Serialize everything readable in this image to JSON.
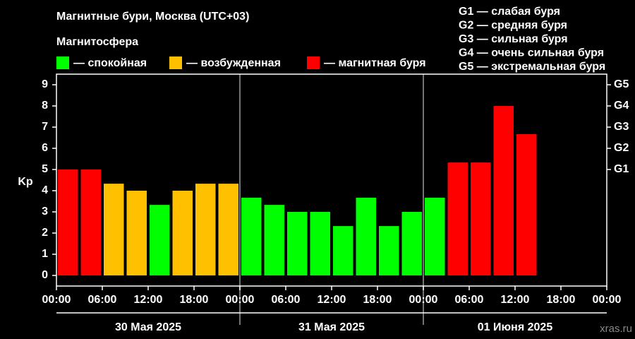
{
  "chart_data": {
    "type": "bar",
    "title": "Магнитные бури, Москва (UTC+03)",
    "legend_title": "Магнитосфера",
    "legend": [
      {
        "label": "— спокойная",
        "color": "#00ff00"
      },
      {
        "label": "— возбужденная",
        "color": "#ffc000"
      },
      {
        "label": "— магнитная буря",
        "color": "#ff0000"
      }
    ],
    "scale_legend": [
      "G1 — слабая буря",
      "G2 — средняя буря",
      "G3 — сильная буря",
      "G4 — очень сильная буря",
      "G5 — экстремальная буря"
    ],
    "y_label": "Kp",
    "x": [
      0,
      3,
      6,
      9,
      12,
      15,
      18,
      21,
      24,
      27,
      30,
      33,
      36,
      39,
      42,
      45,
      48,
      51,
      54,
      57,
      60
    ],
    "bar_width": 3,
    "values": [
      5,
      5,
      4.33,
      4,
      3.33,
      4,
      4.33,
      4.33,
      3.67,
      3.33,
      3,
      3,
      2.33,
      3.67,
      2.33,
      3,
      3.67,
      5.33,
      5.33,
      8,
      6.67
    ],
    "colors": [
      "#ff0000",
      "#ff0000",
      "#ffc000",
      "#ffc000",
      "#00ff00",
      "#ffc000",
      "#ffc000",
      "#ffc000",
      "#00ff00",
      "#00ff00",
      "#00ff00",
      "#00ff00",
      "#00ff00",
      "#00ff00",
      "#00ff00",
      "#00ff00",
      "#00ff00",
      "#ff0000",
      "#ff0000",
      "#ff0000",
      "#ff0000"
    ],
    "xlim": [
      0,
      72
    ],
    "xticks": [
      {
        "value": 0,
        "label": "00:00"
      },
      {
        "value": 6,
        "label": "06:00"
      },
      {
        "value": 12,
        "label": "12:00"
      },
      {
        "value": 18,
        "label": "18:00"
      },
      {
        "value": 24,
        "label": "00:00"
      },
      {
        "value": 30,
        "label": "06:00"
      },
      {
        "value": 36,
        "label": "12:00"
      },
      {
        "value": 42,
        "label": "18:00"
      },
      {
        "value": 48,
        "label": "00:00"
      },
      {
        "value": 54,
        "label": "06:00"
      },
      {
        "value": 60,
        "label": "12:00"
      },
      {
        "value": 66,
        "label": "18:00"
      },
      {
        "value": 72,
        "label": "00:00"
      }
    ],
    "day_separators": [
      24,
      48
    ],
    "days": [
      {
        "start": 0,
        "end": 24,
        "label": "30 Мая 2025"
      },
      {
        "start": 24,
        "end": 48,
        "label": "31 Мая 2025"
      },
      {
        "start": 48,
        "end": 72,
        "label": "01 Июня 2025"
      }
    ],
    "ylim": [
      -0.5,
      9.5
    ],
    "yticks": [
      0,
      1,
      2,
      3,
      4,
      5,
      6,
      7,
      8,
      9
    ],
    "y2lim": [
      -0.5,
      9.5
    ],
    "y2ticks": [
      {
        "value": 5,
        "label": "G1"
      },
      {
        "value": 6,
        "label": "G2"
      },
      {
        "value": 7,
        "label": "G3"
      },
      {
        "value": 8,
        "label": "G4"
      },
      {
        "value": 9,
        "label": "G5"
      }
    ],
    "watermark": "xras.ru"
  }
}
